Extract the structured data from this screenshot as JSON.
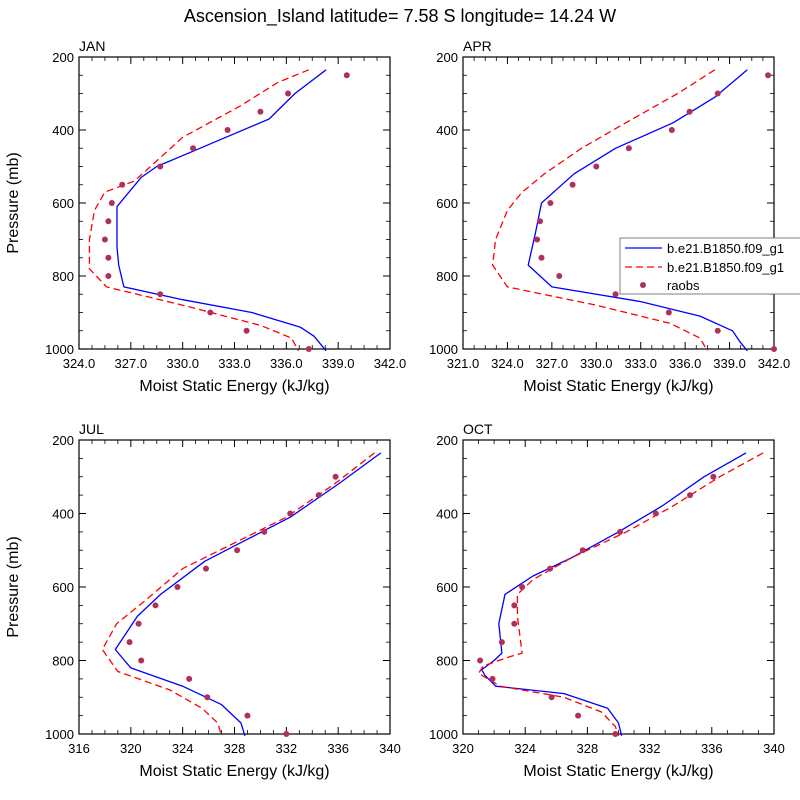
{
  "title": "Ascension_Island  latitude= 7.58 S longitude= 14.24 W",
  "colors": {
    "model1": "#0000ff",
    "model2": "#ff0000",
    "raobs": "#b0305c"
  },
  "legend": {
    "entries": [
      "b.e21.B1850.f09_g1",
      "b.e21.B1850.f09_g1",
      "raobs"
    ]
  },
  "chart_data": [
    {
      "type": "line",
      "panel": "JAN",
      "xlabel": "Moist Static Energy (kJ/kg)",
      "ylabel": "Pressure (mb)",
      "xlim": [
        324,
        342
      ],
      "ylim": [
        1000,
        200
      ],
      "xticks": [
        "324.0",
        "327.0",
        "330.0",
        "333.0",
        "336.0",
        "339.0",
        "342.0"
      ],
      "xtick_values": [
        324,
        327,
        330,
        333,
        336,
        339,
        342
      ],
      "yticks": [
        "200",
        "400",
        "600",
        "800",
        "1000"
      ],
      "ytick_values": [
        200,
        400,
        600,
        800,
        1000
      ],
      "series": [
        {
          "name": "b.e21.B1850.f09_g1",
          "style": "solid",
          "points": [
            [
              338.3,
              235
            ],
            [
              336.5,
              300
            ],
            [
              335.0,
              370
            ],
            [
              331.0,
              450
            ],
            [
              328.5,
              500
            ],
            [
              327.6,
              530
            ],
            [
              326.2,
              610
            ],
            [
              326.2,
              720
            ],
            [
              326.3,
              770
            ],
            [
              326.6,
              830
            ],
            [
              330.0,
              865
            ],
            [
              334.0,
              900
            ],
            [
              336.8,
              940
            ],
            [
              337.6,
              965
            ],
            [
              338.3,
              1005
            ]
          ]
        },
        {
          "name": "b.e21.B1850.f09_g1",
          "style": "dash",
          "points": [
            [
              337.3,
              235
            ],
            [
              335.5,
              270
            ],
            [
              333.3,
              335
            ],
            [
              330.0,
              420
            ],
            [
              327.2,
              540
            ],
            [
              325.5,
              570
            ],
            [
              324.9,
              620
            ],
            [
              324.6,
              700
            ],
            [
              324.6,
              780
            ],
            [
              325.6,
              830
            ],
            [
              330.0,
              880
            ],
            [
              334.5,
              935
            ],
            [
              336.3,
              970
            ],
            [
              336.7,
              1005
            ]
          ]
        },
        {
          "name": "raobs",
          "style": "marker",
          "points": [
            [
              339.5,
              250
            ],
            [
              336.1,
              300
            ],
            [
              334.5,
              350
            ],
            [
              332.6,
              400
            ],
            [
              330.6,
              450
            ],
            [
              328.7,
              500
            ],
            [
              326.5,
              550
            ],
            [
              325.9,
              600
            ],
            [
              325.7,
              650
            ],
            [
              325.5,
              700
            ],
            [
              325.7,
              750
            ],
            [
              325.7,
              800
            ],
            [
              328.7,
              850
            ],
            [
              331.6,
              900
            ],
            [
              333.7,
              950
            ],
            [
              337.3,
              1000
            ]
          ]
        }
      ]
    },
    {
      "type": "line",
      "panel": "APR",
      "xlabel": "Moist Static Energy (kJ/kg)",
      "ylabel": "",
      "xlim": [
        321,
        342
      ],
      "ylim": [
        1000,
        200
      ],
      "xticks": [
        "321.0",
        "324.0",
        "327.0",
        "330.0",
        "333.0",
        "336.0",
        "339.0",
        "342.0"
      ],
      "xtick_values": [
        321,
        324,
        327,
        330,
        333,
        336,
        339,
        342
      ],
      "yticks": [
        "200",
        "400",
        "600",
        "800",
        "1000"
      ],
      "ytick_values": [
        200,
        400,
        600,
        800,
        1000
      ],
      "series": [
        {
          "name": "b.e21.B1850.f09_g1",
          "style": "solid",
          "points": [
            [
              340.2,
              235
            ],
            [
              338.0,
              310
            ],
            [
              335.2,
              380
            ],
            [
              331.3,
              450
            ],
            [
              328.5,
              520
            ],
            [
              326.3,
              600
            ],
            [
              325.9,
              680
            ],
            [
              325.4,
              770
            ],
            [
              327.0,
              830
            ],
            [
              333.0,
              870
            ],
            [
              337.0,
              910
            ],
            [
              339.2,
              950
            ],
            [
              339.7,
              980
            ],
            [
              340.2,
              1005
            ]
          ]
        },
        {
          "name": "b.e21.B1850.f09_g1",
          "style": "dash",
          "points": [
            [
              338.0,
              235
            ],
            [
              335.5,
              300
            ],
            [
              332.0,
              380
            ],
            [
              329.0,
              450
            ],
            [
              326.5,
              520
            ],
            [
              325.0,
              570
            ],
            [
              324.0,
              620
            ],
            [
              323.2,
              700
            ],
            [
              323.0,
              770
            ],
            [
              324.0,
              830
            ],
            [
              330.0,
              880
            ],
            [
              335.0,
              930
            ],
            [
              337.0,
              970
            ],
            [
              337.5,
              1005
            ]
          ]
        },
        {
          "name": "raobs",
          "style": "marker",
          "points": [
            [
              341.6,
              250
            ],
            [
              338.2,
              300
            ],
            [
              336.3,
              350
            ],
            [
              335.1,
              400
            ],
            [
              332.2,
              450
            ],
            [
              330.0,
              500
            ],
            [
              328.4,
              550
            ],
            [
              326.9,
              600
            ],
            [
              326.2,
              650
            ],
            [
              326.0,
              700
            ],
            [
              326.3,
              750
            ],
            [
              327.5,
              800
            ],
            [
              331.3,
              850
            ],
            [
              334.9,
              900
            ],
            [
              338.2,
              950
            ],
            [
              342.0,
              1000
            ]
          ]
        }
      ]
    },
    {
      "type": "line",
      "panel": "JUL",
      "xlabel": "Moist Static Energy (kJ/kg)",
      "ylabel": "Pressure (mb)",
      "xlim": [
        316,
        340
      ],
      "ylim": [
        1000,
        200
      ],
      "xticks": [
        "316",
        "320",
        "324",
        "328",
        "332",
        "336",
        "340"
      ],
      "xtick_values": [
        316,
        320,
        324,
        328,
        332,
        336,
        340
      ],
      "yticks": [
        "200",
        "400",
        "600",
        "800",
        "1000"
      ],
      "ytick_values": [
        200,
        400,
        600,
        800,
        1000
      ],
      "series": [
        {
          "name": "b.e21.B1850.f09_g1",
          "style": "solid",
          "points": [
            [
              339.3,
              235
            ],
            [
              336.0,
              320
            ],
            [
              332.3,
              410
            ],
            [
              329.0,
              470
            ],
            [
              325.7,
              530
            ],
            [
              322.3,
              620
            ],
            [
              320.5,
              680
            ],
            [
              318.8,
              770
            ],
            [
              320.0,
              820
            ],
            [
              324.0,
              870
            ],
            [
              327.0,
              920
            ],
            [
              328.5,
              970
            ],
            [
              328.8,
              1005
            ]
          ]
        },
        {
          "name": "b.e21.B1850.f09_g1",
          "style": "dash",
          "points": [
            [
              338.8,
              235
            ],
            [
              335.7,
              320
            ],
            [
              332.0,
              410
            ],
            [
              328.0,
              480
            ],
            [
              324.0,
              550
            ],
            [
              321.0,
              640
            ],
            [
              318.9,
              700
            ],
            [
              317.8,
              770
            ],
            [
              319.0,
              830
            ],
            [
              323.0,
              880
            ],
            [
              325.5,
              930
            ],
            [
              326.7,
              970
            ],
            [
              327.0,
              1005
            ]
          ]
        },
        {
          "name": "raobs",
          "style": "marker",
          "points": [
            [
              335.8,
              300
            ],
            [
              334.5,
              350
            ],
            [
              332.3,
              400
            ],
            [
              330.3,
              450
            ],
            [
              328.2,
              500
            ],
            [
              325.8,
              550
            ],
            [
              323.6,
              600
            ],
            [
              321.9,
              650
            ],
            [
              320.6,
              700
            ],
            [
              319.9,
              750
            ],
            [
              320.8,
              800
            ],
            [
              324.5,
              850
            ],
            [
              325.9,
              900
            ],
            [
              329.0,
              950
            ],
            [
              332.0,
              1000
            ]
          ]
        }
      ]
    },
    {
      "type": "line",
      "panel": "OCT",
      "xlabel": "Moist Static Energy (kJ/kg)",
      "ylabel": "",
      "xlim": [
        320,
        340
      ],
      "ylim": [
        1000,
        200
      ],
      "xticks": [
        "320",
        "324",
        "328",
        "332",
        "336",
        "340"
      ],
      "xtick_values": [
        320,
        324,
        328,
        332,
        336,
        340
      ],
      "yticks": [
        "200",
        "400",
        "600",
        "800",
        "1000"
      ],
      "ytick_values": [
        200,
        400,
        600,
        800,
        1000
      ],
      "series": [
        {
          "name": "b.e21.B1850.f09_g1",
          "style": "solid",
          "points": [
            [
              338.2,
              235
            ],
            [
              335.5,
              300
            ],
            [
              332.8,
              380
            ],
            [
              330.0,
              450
            ],
            [
              327.0,
              520
            ],
            [
              324.5,
              570
            ],
            [
              322.7,
              620
            ],
            [
              322.3,
              700
            ],
            [
              322.5,
              780
            ],
            [
              322.0,
              800
            ],
            [
              321.2,
              825
            ],
            [
              321.4,
              840
            ],
            [
              322.1,
              870
            ],
            [
              326.5,
              890
            ],
            [
              329.3,
              930
            ],
            [
              330.0,
              970
            ],
            [
              330.2,
              1005
            ]
          ]
        },
        {
          "name": "b.e21.B1850.f09_g1",
          "style": "dash",
          "points": [
            [
              339.3,
              235
            ],
            [
              336.5,
              300
            ],
            [
              333.5,
              380
            ],
            [
              330.5,
              450
            ],
            [
              327.0,
              520
            ],
            [
              324.5,
              580
            ],
            [
              323.5,
              620
            ],
            [
              323.5,
              680
            ],
            [
              323.8,
              780
            ],
            [
              323.0,
              790
            ],
            [
              321.3,
              815
            ],
            [
              321.0,
              835
            ],
            [
              322.4,
              870
            ],
            [
              326.5,
              900
            ],
            [
              328.9,
              940
            ],
            [
              329.8,
              980
            ],
            [
              330.0,
              1005
            ]
          ]
        },
        {
          "name": "raobs",
          "style": "marker",
          "points": [
            [
              336.1,
              300
            ],
            [
              334.6,
              350
            ],
            [
              332.4,
              400
            ],
            [
              330.1,
              450
            ],
            [
              327.7,
              500
            ],
            [
              325.6,
              550
            ],
            [
              323.8,
              600
            ],
            [
              323.3,
              650
            ],
            [
              323.3,
              700
            ],
            [
              322.5,
              750
            ],
            [
              321.1,
              800
            ],
            [
              321.9,
              850
            ],
            [
              325.7,
              900
            ],
            [
              327.4,
              950
            ],
            [
              329.8,
              1000
            ]
          ]
        }
      ]
    }
  ]
}
